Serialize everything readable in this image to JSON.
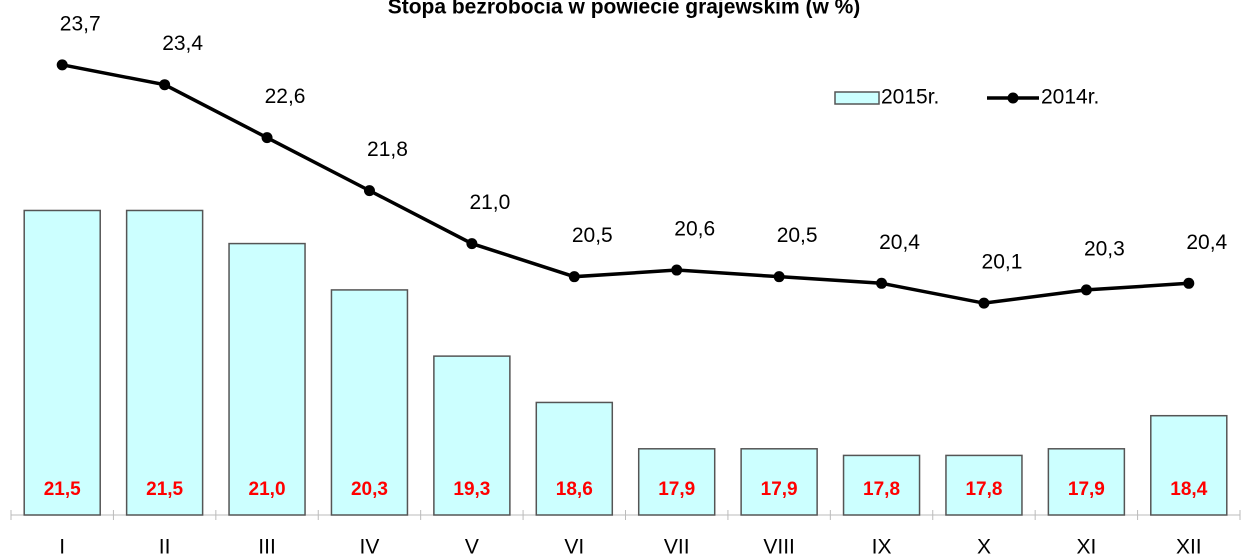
{
  "chart_data": {
    "type": "bar_line",
    "title": "Stopa bezrobocia w powiecie grajewskim (w %)",
    "categories": [
      "I",
      "II",
      "III",
      "IV",
      "V",
      "VI",
      "VII",
      "VIII",
      "IX",
      "X",
      "XI",
      "XII"
    ],
    "series": [
      {
        "name": "2015r.",
        "type": "bar",
        "color": "#ccffff",
        "values": [
          21.5,
          21.5,
          21.0,
          20.3,
          19.3,
          18.6,
          17.9,
          17.9,
          17.8,
          17.8,
          17.9,
          18.4
        ],
        "value_labels": [
          "21,5",
          "21,5",
          "21,0",
          "20,3",
          "19,3",
          "18,6",
          "17,9",
          "17,9",
          "17,8",
          "17,8",
          "17,9",
          "18,4"
        ]
      },
      {
        "name": "2014r.",
        "type": "line",
        "color": "#000000",
        "values": [
          23.7,
          23.4,
          22.6,
          21.8,
          21.0,
          20.5,
          20.6,
          20.5,
          20.4,
          20.1,
          20.3,
          20.4
        ],
        "value_labels": [
          "23,7",
          "23,4",
          "22,6",
          "21,8",
          "21,0",
          "20,5",
          "20,6",
          "20,5",
          "20,4",
          "20,1",
          "20,3",
          "20,4"
        ]
      }
    ],
    "ylim": [
      16.9,
      24.0
    ],
    "legend": "top-right"
  }
}
